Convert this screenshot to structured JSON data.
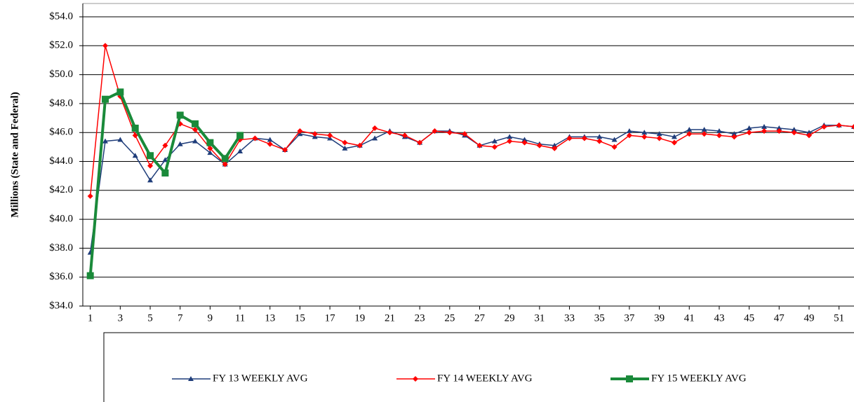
{
  "chart_data": {
    "type": "line",
    "y_label": "Millions (State and Federal)",
    "x": [
      1,
      2,
      3,
      4,
      5,
      6,
      7,
      8,
      9,
      10,
      11,
      12,
      13,
      14,
      15,
      16,
      17,
      18,
      19,
      20,
      21,
      22,
      23,
      24,
      25,
      26,
      27,
      28,
      29,
      30,
      31,
      32,
      33,
      34,
      35,
      36,
      37,
      38,
      39,
      40,
      41,
      42,
      43,
      44,
      45,
      46,
      47,
      48,
      49,
      50,
      51,
      52
    ],
    "xlim": [
      0.5,
      52
    ],
    "xticks": [
      1,
      3,
      5,
      7,
      9,
      11,
      13,
      15,
      17,
      19,
      21,
      23,
      25,
      27,
      29,
      31,
      33,
      35,
      37,
      39,
      41,
      43,
      45,
      47,
      49,
      51
    ],
    "ylim": [
      34,
      54
    ],
    "yticks": [
      {
        "value": 34,
        "label": "$34.0"
      },
      {
        "value": 36,
        "label": "$36.0"
      },
      {
        "value": 38,
        "label": "$38.0"
      },
      {
        "value": 40,
        "label": "$40.0"
      },
      {
        "value": 42,
        "label": "$42.0"
      },
      {
        "value": 44,
        "label": "$44.0"
      },
      {
        "value": 46,
        "label": "$46.0"
      },
      {
        "value": 48,
        "label": "$48.0"
      },
      {
        "value": 50,
        "label": "$50.0"
      },
      {
        "value": 52,
        "label": "$52.0"
      },
      {
        "value": 54,
        "label": "$54.0"
      }
    ],
    "grid": true,
    "legend": "bottom",
    "series": [
      {
        "name": "FY 13 WEEKLY AVG",
        "color": "#1f3d7a",
        "marker": "triangle",
        "line_width": 1.5,
        "values": [
          37.7,
          45.4,
          45.5,
          44.4,
          42.7,
          44.1,
          45.2,
          45.4,
          44.6,
          43.8,
          44.7,
          45.6,
          45.5,
          44.8,
          45.9,
          45.7,
          45.6,
          44.9,
          45.1,
          45.6,
          46.1,
          45.7,
          45.3,
          46.1,
          46.1,
          45.8,
          45.1,
          45.4,
          45.7,
          45.5,
          45.2,
          45.1,
          45.7,
          45.7,
          45.7,
          45.5,
          46.1,
          46.0,
          45.9,
          45.7,
          46.2,
          46.2,
          46.1,
          45.9,
          46.3,
          46.4,
          46.3,
          46.2,
          46.0,
          46.5,
          46.5,
          46.4
        ]
      },
      {
        "name": "FY 14 WEEKLY AVG",
        "color": "#ff0000",
        "marker": "diamond",
        "line_width": 1.5,
        "values": [
          41.6,
          52.0,
          48.5,
          45.8,
          43.7,
          45.1,
          46.6,
          46.2,
          44.9,
          43.8,
          45.5,
          45.6,
          45.2,
          44.8,
          46.1,
          45.9,
          45.8,
          45.3,
          45.1,
          46.3,
          46.0,
          45.8,
          45.3,
          46.1,
          46.0,
          45.9,
          45.1,
          45.0,
          45.4,
          45.3,
          45.1,
          44.9,
          45.6,
          45.6,
          45.4,
          45.0,
          45.8,
          45.7,
          45.6,
          45.3,
          45.9,
          45.9,
          45.8,
          45.7,
          46.0,
          46.1,
          46.1,
          46.0,
          45.8,
          46.4,
          46.5,
          46.4
        ]
      },
      {
        "name": "FY 15 WEEKLY AVG",
        "color": "#1a8a3a",
        "marker": "square",
        "line_width": 4,
        "values": [
          36.1,
          48.3,
          48.8,
          46.3,
          44.4,
          43.2,
          47.2,
          46.6,
          45.3,
          44.2,
          45.8,
          null,
          null,
          null,
          null,
          null,
          null,
          null,
          null,
          null,
          null,
          null,
          null,
          null,
          null,
          null,
          null,
          null,
          null,
          null,
          null,
          null,
          null,
          null,
          null,
          null,
          null,
          null,
          null,
          null,
          null,
          null,
          null,
          null,
          null,
          null,
          null,
          null,
          null,
          null,
          null,
          null
        ]
      }
    ]
  }
}
